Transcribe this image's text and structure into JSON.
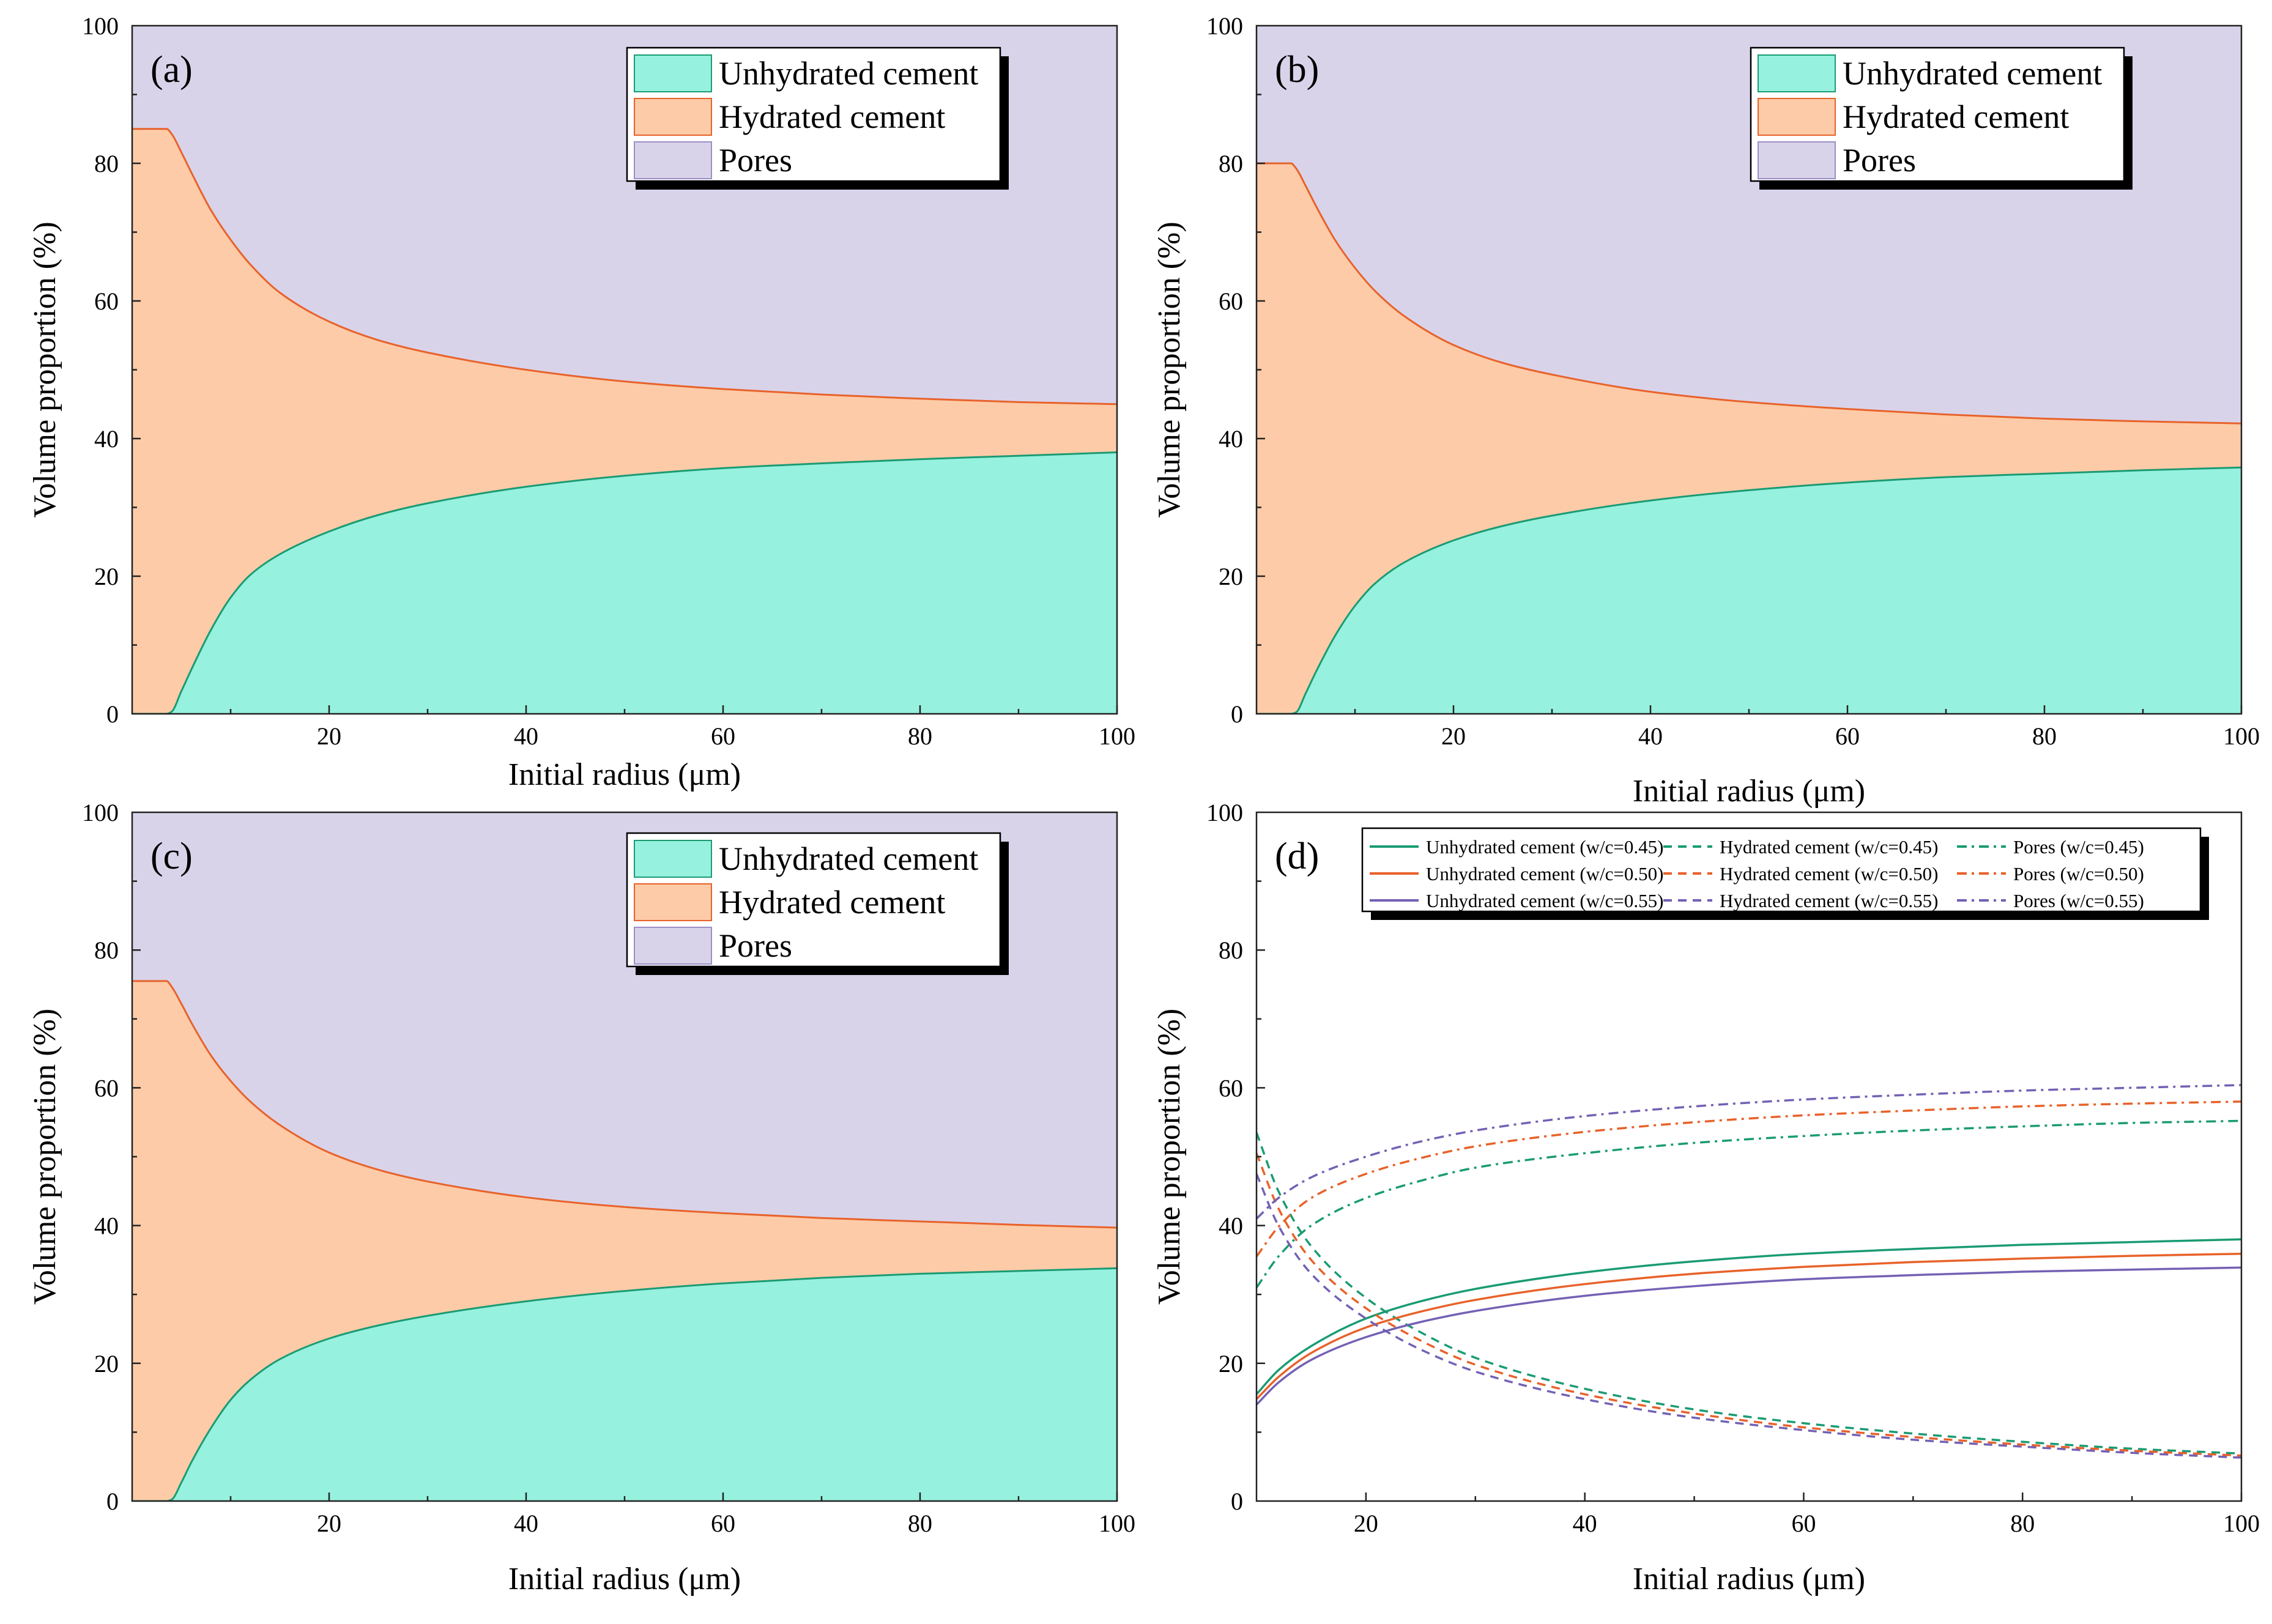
{
  "figure": {
    "layout": "2x2 grid of panels (a), (b), (c), (d)",
    "colors": {
      "unhydrated_fill": "#96F1DE",
      "hydrated_fill": "#FDCBA7",
      "pores_fill": "#D9D3EA",
      "unhydrated_line": "#1A9B73",
      "hydrated_line": "#E8622A",
      "w045": "#1A9B73",
      "w050": "#E8622A",
      "w055": "#7461B4",
      "frame": "#222222"
    }
  },
  "chart_data": [
    {
      "id": "a",
      "type": "area",
      "panel_label": "(a)",
      "xlabel": "Initial radius (μm)",
      "ylabel": "Volume proportion (%)",
      "xlim": [
        0,
        100
      ],
      "ylim": [
        0,
        100
      ],
      "xticks": [
        20,
        40,
        60,
        80,
        100
      ],
      "yticks": [
        0,
        20,
        40,
        60,
        80,
        100
      ],
      "legend_position": "top-right",
      "legend": [
        "Unhydrated cement",
        "Hydrated cement",
        "Pores"
      ],
      "series_stacked": {
        "x": [
          0,
          1,
          2,
          3,
          3.5,
          4,
          5,
          6,
          8,
          10,
          12,
          15,
          20,
          25,
          30,
          40,
          50,
          60,
          70,
          80,
          90,
          100
        ],
        "unhydrated_top": [
          0,
          0,
          0,
          0,
          0,
          0.3,
          3.3,
          6.4,
          12.2,
          16.9,
          20.2,
          23.2,
          26.5,
          28.9,
          30.6,
          33.0,
          34.6,
          35.7,
          36.4,
          37.0,
          37.5,
          38.0
        ],
        "hydrated_top": [
          85,
          85,
          85,
          85,
          85,
          84.3,
          81.6,
          78.7,
          73.2,
          68.9,
          65.3,
          61.2,
          57.0,
          54.3,
          52.5,
          50.0,
          48.3,
          47.2,
          46.4,
          45.8,
          45.3,
          45.0
        ]
      }
    },
    {
      "id": "b",
      "type": "area",
      "panel_label": "(b)",
      "xlabel": "Initial radius (μm)",
      "ylabel": "Volume proportion (%)",
      "xlim": [
        0,
        100
      ],
      "ylim": [
        0,
        100
      ],
      "xticks": [
        20,
        40,
        60,
        80,
        100
      ],
      "yticks": [
        0,
        20,
        40,
        60,
        80,
        100
      ],
      "legend_position": "top-right",
      "legend": [
        "Unhydrated cement",
        "Hydrated cement",
        "Pores"
      ],
      "series_stacked": {
        "x": [
          0,
          1,
          2,
          3,
          3.5,
          4,
          5,
          6,
          8,
          10,
          12,
          15,
          20,
          25,
          30,
          40,
          50,
          60,
          70,
          80,
          90,
          100
        ],
        "unhydrated_top": [
          0,
          0,
          0,
          0,
          0,
          0.2,
          3.0,
          6.0,
          11.4,
          15.7,
          18.9,
          22.0,
          25.2,
          27.3,
          28.8,
          31.0,
          32.5,
          33.6,
          34.4,
          34.9,
          35.4,
          35.8
        ],
        "hydrated_top": [
          80,
          80,
          80,
          80,
          80,
          79.3,
          76.7,
          73.9,
          68.8,
          64.8,
          61.5,
          57.8,
          53.6,
          51.0,
          49.3,
          46.8,
          45.3,
          44.3,
          43.5,
          42.9,
          42.5,
          42.2
        ]
      }
    },
    {
      "id": "c",
      "type": "area",
      "panel_label": "(c)",
      "xlabel": "Initial radius (μm)",
      "ylabel": "Volume proportion (%)",
      "xlim": [
        0,
        100
      ],
      "ylim": [
        0,
        100
      ],
      "xticks": [
        20,
        40,
        60,
        80,
        100
      ],
      "yticks": [
        0,
        20,
        40,
        60,
        80,
        100
      ],
      "legend_position": "top-right",
      "legend": [
        "Unhydrated cement",
        "Hydrated cement",
        "Pores"
      ],
      "series_stacked": {
        "x": [
          0,
          1,
          2,
          3,
          3.5,
          4,
          5,
          6,
          8,
          10,
          12,
          15,
          20,
          25,
          30,
          40,
          50,
          60,
          70,
          80,
          90,
          100
        ],
        "unhydrated_top": [
          0,
          0,
          0,
          0,
          0,
          0.2,
          2.7,
          5.6,
          10.6,
          14.7,
          17.6,
          20.6,
          23.6,
          25.5,
          26.9,
          29.0,
          30.5,
          31.6,
          32.4,
          33.0,
          33.4,
          33.8
        ],
        "hydrated_top": [
          75.5,
          75.5,
          75.5,
          75.5,
          75.5,
          74.7,
          72.2,
          69.5,
          64.7,
          61.0,
          58.0,
          54.6,
          50.6,
          48.1,
          46.4,
          44.1,
          42.7,
          41.8,
          41.1,
          40.6,
          40.1,
          39.7
        ]
      }
    },
    {
      "id": "d",
      "type": "line",
      "panel_label": "(d)",
      "xlabel": "Initial radius (μm)",
      "ylabel": "Volume proportion (%)",
      "xlim": [
        10,
        100
      ],
      "ylim": [
        0,
        100
      ],
      "xticks": [
        20,
        40,
        60,
        80,
        100
      ],
      "yticks": [
        0,
        20,
        40,
        60,
        80,
        100
      ],
      "legend_position": "top",
      "x": [
        10,
        12,
        15,
        20,
        25,
        30,
        40,
        50,
        60,
        70,
        80,
        90,
        100
      ],
      "series": [
        {
          "name": "Unhydrated cement (w/c=0.45)",
          "style": "solid",
          "color_key": "w045",
          "values": [
            15.5,
            19.0,
            22.5,
            26.5,
            29.0,
            30.8,
            33.2,
            34.8,
            35.9,
            36.6,
            37.2,
            37.6,
            38.0
          ]
        },
        {
          "name": "Hydrated cement (w/c=0.45)",
          "style": "dash",
          "color_key": "w045",
          "values": [
            53.5,
            45.0,
            37.0,
            29.5,
            24.5,
            20.8,
            16.3,
            13.3,
            11.3,
            9.8,
            8.6,
            7.6,
            6.9
          ]
        },
        {
          "name": "Pores (w/c=0.45)",
          "style": "dashdot",
          "color_key": "w045",
          "values": [
            31.0,
            35.5,
            40.0,
            44.0,
            46.5,
            48.4,
            50.5,
            52.0,
            53.0,
            53.8,
            54.4,
            54.9,
            55.2
          ]
        },
        {
          "name": "Unhydrated cement (w/c=0.50)",
          "style": "solid",
          "color_key": "w050",
          "values": [
            14.8,
            18.0,
            21.5,
            25.2,
            27.5,
            29.2,
            31.5,
            33.0,
            34.0,
            34.7,
            35.2,
            35.6,
            35.9
          ]
        },
        {
          "name": "Hydrated cement (w/c=0.50)",
          "style": "dash",
          "color_key": "w050",
          "values": [
            50.5,
            42.5,
            35.0,
            28.0,
            23.3,
            19.8,
            15.5,
            12.7,
            10.7,
            9.3,
            8.2,
            7.3,
            6.6
          ]
        },
        {
          "name": "Pores (w/c=0.50)",
          "style": "dashdot",
          "color_key": "w050",
          "values": [
            35.5,
            39.8,
            44.0,
            47.5,
            49.8,
            51.5,
            53.6,
            55.0,
            56.0,
            56.7,
            57.3,
            57.7,
            58.0
          ]
        },
        {
          "name": "Unhydrated cement (w/c=0.55)",
          "style": "solid",
          "color_key": "w055",
          "values": [
            14.0,
            17.2,
            20.5,
            23.8,
            26.0,
            27.6,
            29.8,
            31.2,
            32.2,
            32.8,
            33.3,
            33.6,
            33.9
          ]
        },
        {
          "name": "Hydrated cement (w/c=0.55)",
          "style": "dash",
          "color_key": "w055",
          "values": [
            47.5,
            40.0,
            33.0,
            26.5,
            22.0,
            18.8,
            14.8,
            12.1,
            10.3,
            8.9,
            7.9,
            7.0,
            6.3
          ]
        },
        {
          "name": "Pores (w/c=0.55)",
          "style": "dashdot",
          "color_key": "w055",
          "values": [
            41.0,
            44.0,
            47.0,
            50.0,
            52.2,
            53.8,
            55.9,
            57.3,
            58.3,
            59.0,
            59.6,
            60.0,
            60.4
          ]
        }
      ]
    }
  ]
}
